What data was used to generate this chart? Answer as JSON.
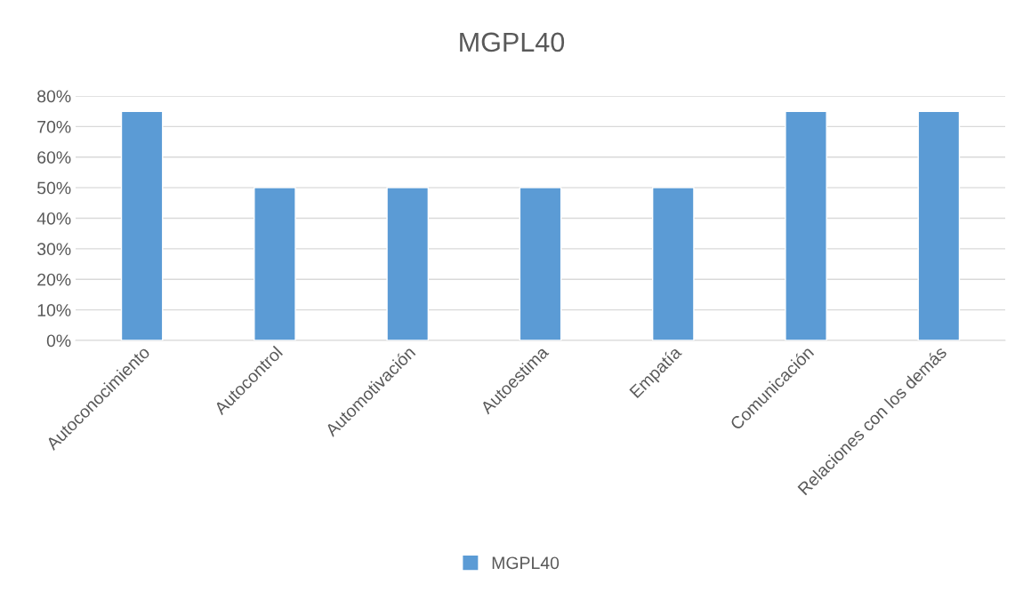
{
  "chart_data": {
    "type": "bar",
    "title": "MGPL40",
    "categories": [
      "Autoconocimiento",
      "Autocontrol",
      "Automotivación",
      "Autoestima",
      "Empatía",
      "Comunicación",
      "Relaciones con los demás"
    ],
    "series": [
      {
        "name": "MGPL40",
        "color": "#5b9bd5",
        "values": [
          75,
          50,
          50,
          50,
          50,
          75,
          75
        ]
      }
    ],
    "ylim": [
      0,
      80
    ],
    "yticks": [
      {
        "value": 0,
        "label": "0%"
      },
      {
        "value": 10,
        "label": "10%"
      },
      {
        "value": 20,
        "label": "20%"
      },
      {
        "value": 30,
        "label": "30%"
      },
      {
        "value": 40,
        "label": "40%"
      },
      {
        "value": 50,
        "label": "50%"
      },
      {
        "value": 60,
        "label": "60%"
      },
      {
        "value": 70,
        "label": "70%"
      },
      {
        "value": 80,
        "label": "80%"
      }
    ],
    "grid": "y",
    "legend": "bottom"
  }
}
